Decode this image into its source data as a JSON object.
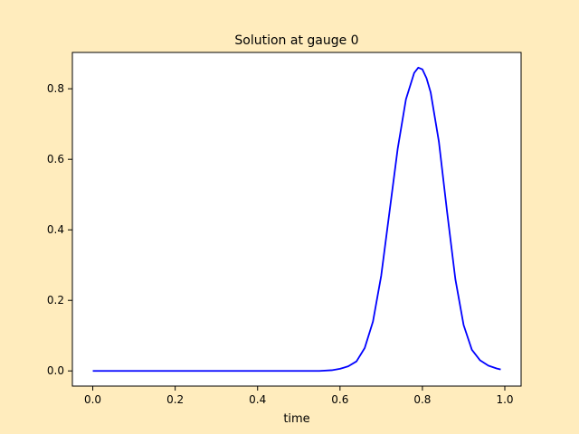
{
  "colors": {
    "figure_background": "#ffecbd",
    "axes_background": "#ffffff",
    "line": "#0000ff",
    "axes_edge": "#000000"
  },
  "chart_data": {
    "type": "line",
    "title": "Solution at gauge 0",
    "xlabel": "time",
    "ylabel": "",
    "xlim": [
      -0.0495,
      1.0395
    ],
    "ylim": [
      -0.043,
      0.903
    ],
    "xticks": [
      0.0,
      0.2,
      0.4,
      0.6,
      0.8,
      1.0
    ],
    "xtick_labels": [
      "0.0",
      "0.2",
      "0.4",
      "0.6",
      "0.8",
      "1.0"
    ],
    "yticks": [
      0.0,
      0.2,
      0.4,
      0.6,
      0.8
    ],
    "ytick_labels": [
      "0.0",
      "0.2",
      "0.4",
      "0.6",
      "0.8"
    ],
    "grid": false,
    "legend": null,
    "series": [
      {
        "color": "#0000ff",
        "x": [
          0.0,
          0.1,
          0.2,
          0.3,
          0.4,
          0.5,
          0.55,
          0.58,
          0.6,
          0.62,
          0.64,
          0.66,
          0.68,
          0.7,
          0.72,
          0.74,
          0.76,
          0.78,
          0.79,
          0.8,
          0.81,
          0.82,
          0.84,
          0.86,
          0.88,
          0.9,
          0.92,
          0.94,
          0.96,
          0.98,
          0.99
        ],
        "y": [
          0.0,
          0.0,
          0.0,
          0.0,
          0.0,
          0.0,
          0.0,
          0.002,
          0.006,
          0.013,
          0.027,
          0.065,
          0.14,
          0.27,
          0.45,
          0.63,
          0.77,
          0.845,
          0.86,
          0.855,
          0.83,
          0.79,
          0.65,
          0.45,
          0.26,
          0.13,
          0.06,
          0.03,
          0.015,
          0.007,
          0.004
        ]
      }
    ]
  }
}
